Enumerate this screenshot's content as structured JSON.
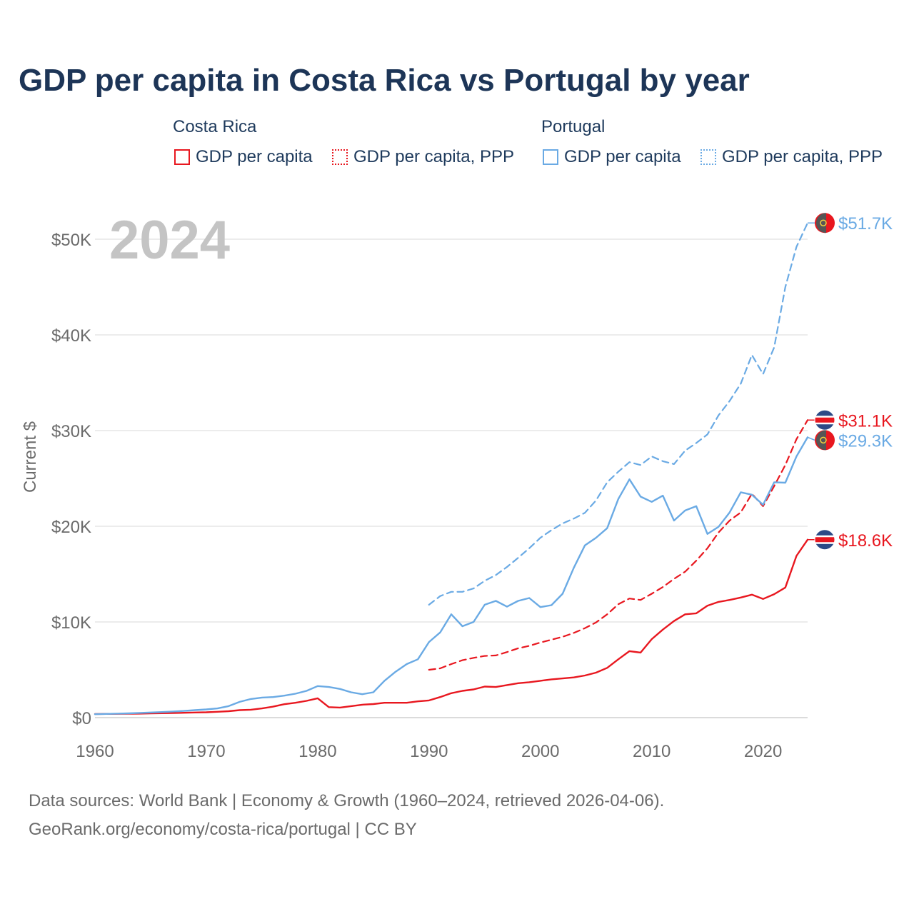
{
  "title": "GDP per capita in Costa Rica vs Portugal by year",
  "legend": {
    "groups": [
      {
        "title": "Costa Rica",
        "items": [
          {
            "label": "GDP per capita",
            "style": "solid",
            "color": "#e8171f"
          },
          {
            "label": "GDP per capita, PPP",
            "style": "dotted",
            "color": "#e8171f"
          }
        ]
      },
      {
        "title": "Portugal",
        "items": [
          {
            "label": "GDP per capita",
            "style": "solid",
            "color": "#6aaae4"
          },
          {
            "label": "GDP per capita, PPP",
            "style": "dotted",
            "color": "#6aaae4"
          }
        ]
      }
    ]
  },
  "footer": {
    "line1": "Data sources: World Bank | Economy & Growth (1960–2024, retrieved 2026-04-06).",
    "line2": "GeoRank.org/economy/costa-rica/portugal | CC BY"
  },
  "chart_data": {
    "type": "line",
    "year_label": "2024",
    "ylabel": "Current $",
    "xlim": [
      1960,
      2024
    ],
    "ylim": [
      0,
      50000
    ],
    "x_ticks": [
      1960,
      1970,
      1980,
      1990,
      2000,
      2010,
      2020
    ],
    "x_tick_labels": [
      "1960",
      "1970",
      "1980",
      "1990",
      "2000",
      "2010",
      "2020"
    ],
    "y_ticks": [
      0,
      10000,
      20000,
      30000,
      40000,
      50000
    ],
    "y_tick_labels": [
      "$0",
      "$10K",
      "$20K",
      "$30K",
      "$40K",
      "$50K"
    ],
    "grid": true,
    "series": [
      {
        "name": "Costa Rica GDP per capita",
        "country": "Costa Rica",
        "color": "#e8171f",
        "dash": "solid",
        "end_label": "$18.6K",
        "x": [
          1960,
          1961,
          1962,
          1963,
          1964,
          1965,
          1966,
          1967,
          1968,
          1969,
          1970,
          1971,
          1972,
          1973,
          1974,
          1975,
          1976,
          1977,
          1978,
          1979,
          1980,
          1981,
          1982,
          1983,
          1984,
          1985,
          1986,
          1987,
          1988,
          1989,
          1990,
          1991,
          1992,
          1993,
          1994,
          1995,
          1996,
          1997,
          1998,
          1999,
          2000,
          2001,
          2002,
          2003,
          2004,
          2005,
          2006,
          2007,
          2008,
          2009,
          2010,
          2011,
          2012,
          2013,
          2014,
          2015,
          2016,
          2017,
          2018,
          2019,
          2020,
          2021,
          2022,
          2023,
          2024
        ],
        "values": [
          380,
          390,
          395,
          410,
          420,
          440,
          460,
          480,
          510,
          540,
          560,
          610,
          670,
          780,
          830,
          960,
          1150,
          1400,
          1550,
          1750,
          2020,
          1100,
          1050,
          1200,
          1350,
          1420,
          1550,
          1550,
          1550,
          1700,
          1800,
          2150,
          2550,
          2800,
          2950,
          3250,
          3200,
          3400,
          3600,
          3700,
          3850,
          4000,
          4100,
          4200,
          4400,
          4700,
          5200,
          6100,
          6950,
          6800,
          8200,
          9200,
          10100,
          10800,
          10900,
          11700,
          12100,
          12300,
          12550,
          12850,
          12400,
          12900,
          13600,
          16900,
          18600
        ]
      },
      {
        "name": "Costa Rica GDP per capita, PPP",
        "country": "Costa Rica",
        "color": "#e8171f",
        "dash": "dashed",
        "end_label": "$31.1K",
        "x": [
          1990,
          1991,
          1992,
          1993,
          1994,
          1995,
          1996,
          1997,
          1998,
          1999,
          2000,
          2001,
          2002,
          2003,
          2004,
          2005,
          2006,
          2007,
          2008,
          2009,
          2010,
          2011,
          2012,
          2013,
          2014,
          2015,
          2016,
          2017,
          2018,
          2019,
          2020,
          2021,
          2022,
          2023,
          2024
        ],
        "values": [
          5000,
          5150,
          5600,
          6000,
          6250,
          6450,
          6500,
          6850,
          7250,
          7500,
          7850,
          8150,
          8450,
          8850,
          9350,
          9950,
          10800,
          11850,
          12450,
          12300,
          12950,
          13650,
          14500,
          15250,
          16400,
          17700,
          19350,
          20600,
          21450,
          23400,
          22100,
          24200,
          26400,
          29100,
          31100
        ]
      },
      {
        "name": "Portugal GDP per capita",
        "country": "Portugal",
        "color": "#6aaae4",
        "dash": "solid",
        "end_label": "$29.3K",
        "x": [
          1960,
          1961,
          1962,
          1963,
          1964,
          1965,
          1966,
          1967,
          1968,
          1969,
          1970,
          1971,
          1972,
          1973,
          1974,
          1975,
          1976,
          1977,
          1978,
          1979,
          1980,
          1981,
          1982,
          1983,
          1984,
          1985,
          1986,
          1987,
          1988,
          1989,
          1990,
          1991,
          1992,
          1993,
          1994,
          1995,
          1996,
          1997,
          1998,
          1999,
          2000,
          2001,
          2002,
          2003,
          2004,
          2005,
          2006,
          2007,
          2008,
          2009,
          2010,
          2011,
          2012,
          2013,
          2014,
          2015,
          2016,
          2017,
          2018,
          2019,
          2020,
          2021,
          2022,
          2023,
          2024
        ],
        "values": [
          360,
          390,
          420,
          450,
          490,
          540,
          580,
          640,
          700,
          780,
          860,
          960,
          1200,
          1650,
          1950,
          2100,
          2150,
          2300,
          2500,
          2800,
          3300,
          3200,
          3000,
          2650,
          2450,
          2650,
          3850,
          4800,
          5600,
          6100,
          7900,
          8900,
          10800,
          9550,
          10000,
          11800,
          12200,
          11600,
          12200,
          12500,
          11550,
          11750,
          12950,
          15650,
          18000,
          18800,
          19800,
          22850,
          24900,
          23100,
          22550,
          23200,
          20600,
          21650,
          22100,
          19200,
          19950,
          21450,
          23550,
          23300,
          22250,
          24600,
          24550,
          27300,
          29300
        ]
      },
      {
        "name": "Portugal GDP per capita, PPP",
        "country": "Portugal",
        "color": "#6aaae4",
        "dash": "dashed",
        "end_label": "$51.7K",
        "x": [
          1990,
          1991,
          1992,
          1993,
          1994,
          1995,
          1996,
          1997,
          1998,
          1999,
          2000,
          2001,
          2002,
          2003,
          2004,
          2005,
          2006,
          2007,
          2008,
          2009,
          2010,
          2011,
          2012,
          2013,
          2014,
          2015,
          2016,
          2017,
          2018,
          2019,
          2020,
          2021,
          2022,
          2023,
          2024
        ],
        "values": [
          11800,
          12700,
          13150,
          13150,
          13500,
          14300,
          14900,
          15750,
          16700,
          17700,
          18800,
          19600,
          20300,
          20800,
          21400,
          22700,
          24600,
          25700,
          26700,
          26400,
          27300,
          26800,
          26500,
          27900,
          28700,
          29600,
          31600,
          33100,
          34900,
          37900,
          35900,
          38700,
          45000,
          49200,
          51700
        ]
      }
    ]
  }
}
